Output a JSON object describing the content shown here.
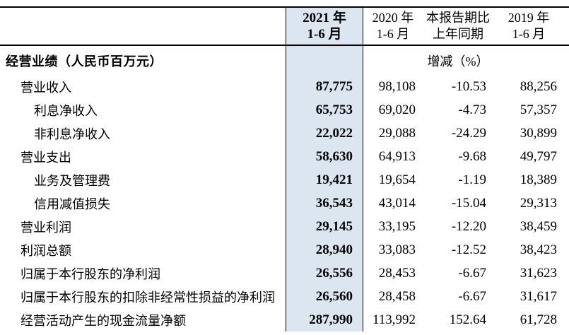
{
  "table": {
    "columns": {
      "c2021": {
        "line1": "2021 年",
        "line2": "1-6 月"
      },
      "c2020": {
        "line1": "2020 年",
        "line2": "1-6 月"
      },
      "cchange": {
        "line1": "本报告期比",
        "line2": "上年同期"
      },
      "c2019": {
        "line1": "2019 年",
        "line2": "1-6 月"
      }
    },
    "section": {
      "title": "经营业绩（人民币百万元）",
      "change_header": "增减（%）"
    },
    "rows": [
      {
        "label": "营业收入",
        "indent": 1,
        "v2021": "87,775",
        "v2020": "98,108",
        "change": "-10.53",
        "v2019": "88,256"
      },
      {
        "label": "利息净收入",
        "indent": 2,
        "v2021": "65,753",
        "v2020": "69,020",
        "change": "-4.73",
        "v2019": "57,357"
      },
      {
        "label": "非利息净收入",
        "indent": 2,
        "v2021": "22,022",
        "v2020": "29,088",
        "change": "-24.29",
        "v2019": "30,899"
      },
      {
        "label": "营业支出",
        "indent": 1,
        "v2021": "58,630",
        "v2020": "64,913",
        "change": "-9.68",
        "v2019": "49,797"
      },
      {
        "label": "业务及管理费",
        "indent": 2,
        "v2021": "19,421",
        "v2020": "19,654",
        "change": "-1.19",
        "v2019": "18,389"
      },
      {
        "label": "信用减值损失",
        "indent": 2,
        "v2021": "36,543",
        "v2020": "43,014",
        "change": "-15.04",
        "v2019": "29,313"
      },
      {
        "label": "营业利润",
        "indent": 1,
        "v2021": "29,145",
        "v2020": "33,195",
        "change": "-12.20",
        "v2019": "38,459"
      },
      {
        "label": "利润总额",
        "indent": 1,
        "v2021": "28,940",
        "v2020": "33,083",
        "change": "-12.52",
        "v2019": "38,423"
      },
      {
        "label": "归属于本行股东的净利润",
        "indent": 1,
        "v2021": "26,556",
        "v2020": "28,453",
        "change": "-6.67",
        "v2019": "31,623"
      },
      {
        "label": "归属于本行股东的扣除非经常性损益的净利润",
        "indent": 1,
        "v2021": "26,560",
        "v2020": "28,458",
        "change": "-6.67",
        "v2019": "31,617"
      },
      {
        "label": "经营活动产生的现金流量净额",
        "indent": 1,
        "v2021": "287,990",
        "v2020": "113,992",
        "change": "152.64",
        "v2019": "61,728"
      }
    ],
    "colors": {
      "highlight_bg": "#dce6f1",
      "rule": "#000000",
      "text": "#000000"
    }
  }
}
